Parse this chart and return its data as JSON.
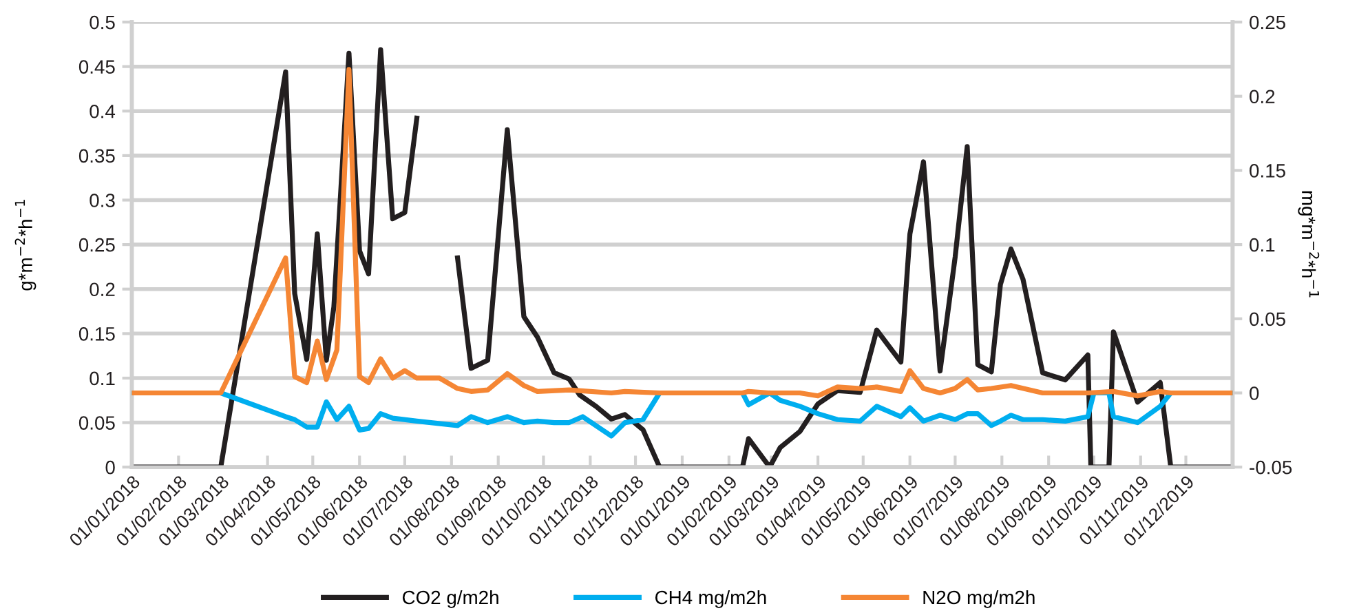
{
  "chart_data": {
    "type": "line",
    "ylabel": "g*m$^{−2}$*h$^{−1}$",
    "y2label": "mg*m$^{−2}$*h$^{−1}$",
    "xlim": [
      "2018-01-01",
      "2020-01-01"
    ],
    "xticks": [
      {
        "value": "2018-01-01",
        "label": "01/01/2018"
      },
      {
        "value": "2018-02-01",
        "label": "01/02/2018"
      },
      {
        "value": "2018-03-01",
        "label": "01/03/2018"
      },
      {
        "value": "2018-04-01",
        "label": "01/04/2018"
      },
      {
        "value": "2018-05-01",
        "label": "01/05/2018"
      },
      {
        "value": "2018-06-01",
        "label": "01/06/2018"
      },
      {
        "value": "2018-07-01",
        "label": "01/07/2018"
      },
      {
        "value": "2018-08-01",
        "label": "01/08/2018"
      },
      {
        "value": "2018-09-01",
        "label": "01/09/2018"
      },
      {
        "value": "2018-10-01",
        "label": "01/10/2018"
      },
      {
        "value": "2018-11-01",
        "label": "01/11/2018"
      },
      {
        "value": "2018-12-01",
        "label": "01/12/2018"
      },
      {
        "value": "2019-01-01",
        "label": "01/01/2019"
      },
      {
        "value": "2019-02-01",
        "label": "01/02/2019"
      },
      {
        "value": "2019-03-01",
        "label": "01/03/2019"
      },
      {
        "value": "2019-04-01",
        "label": "01/04/2019"
      },
      {
        "value": "2019-05-01",
        "label": "01/05/2019"
      },
      {
        "value": "2019-06-01",
        "label": "01/06/2019"
      },
      {
        "value": "2019-07-01",
        "label": "01/07/2019"
      },
      {
        "value": "2019-08-01",
        "label": "01/08/2019"
      },
      {
        "value": "2019-09-01",
        "label": "01/09/2019"
      },
      {
        "value": "2019-10-01",
        "label": "01/10/2019"
      },
      {
        "value": "2019-11-01",
        "label": "01/11/2019"
      },
      {
        "value": "2019-12-01",
        "label": "01/12/2019"
      }
    ],
    "ylim": [
      0,
      0.5
    ],
    "yticks": [
      0,
      0.05,
      0.1,
      0.15,
      0.2,
      0.25,
      0.3,
      0.35,
      0.4,
      0.45,
      0.5
    ],
    "y2lim": [
      -0.05,
      0.25
    ],
    "y2ticks": [
      {
        "value": -0.05,
        "label": "-0.05"
      },
      0,
      0.05,
      0.1,
      0.15,
      0.2,
      0.25
    ],
    "grid": "y",
    "legend": "bottom",
    "marker": "none",
    "line_style": "solid",
    "series": [
      {
        "name": "CO2 g/m2h",
        "color": "#231f20",
        "x": [
          "2018-01-01",
          "2018-03-01",
          "2018-04-13",
          "2018-04-19",
          "2018-04-27",
          "2018-05-04",
          "2018-05-10",
          "2018-05-15",
          "2018-05-25",
          "2018-06-01",
          "2018-06-07",
          "2018-06-15",
          "2018-06-23",
          "2018-07-01",
          "2018-07-09",
          "2018-07-20",
          "2018-08-05",
          "2018-08-14",
          "2018-08-25",
          "2018-09-07",
          "2018-09-18",
          "2018-09-27",
          "2018-10-08",
          "2018-10-18",
          "2018-10-25",
          "2018-11-05",
          "2018-11-15",
          "2018-11-24",
          "2018-12-06",
          "2018-12-17",
          "2019-02-10",
          "2019-02-14",
          "2019-02-28",
          "2019-03-07",
          "2019-03-20",
          "2019-04-01",
          "2019-04-14",
          "2019-04-29",
          "2019-05-10",
          "2019-05-26",
          "2019-06-01",
          "2019-06-10",
          "2019-06-21",
          "2019-07-01",
          "2019-07-09",
          "2019-07-16",
          "2019-07-25",
          "2019-07-31",
          "2019-08-07",
          "2019-08-15",
          "2019-08-28",
          "2019-09-12",
          "2019-09-27",
          "2019-09-29",
          "2019-10-11",
          "2019-10-14",
          "2019-10-30",
          "2019-11-14",
          "2019-11-21",
          "2019-12-31"
        ],
        "values": [
          0,
          0,
          0.444,
          0.195,
          0.121,
          0.262,
          0.12,
          0.18,
          0.465,
          0.243,
          0.217,
          0.469,
          0.279,
          0.286,
          0.392,
          null,
          0.235,
          0.111,
          0.12,
          0.379,
          0.169,
          0.146,
          0.106,
          0.099,
          0.081,
          0.068,
          0.054,
          0.059,
          0.042,
          0,
          0,
          0.032,
          0,
          0.022,
          0.04,
          0.071,
          0.086,
          0.084,
          0.154,
          0.118,
          0.262,
          0.343,
          0.108,
          0.236,
          0.36,
          0.115,
          0.107,
          0.205,
          0.245,
          0.211,
          0.106,
          0.098,
          0.126,
          0,
          0,
          0.152,
          0.073,
          0.095,
          0,
          0
        ]
      },
      {
        "name": "CH4 mg/m2h",
        "color": "#00aeef",
        "axis": "y2",
        "x": [
          "2018-01-01",
          "2018-03-01",
          "2018-04-13",
          "2018-04-19",
          "2018-04-27",
          "2018-05-04",
          "2018-05-10",
          "2018-05-17",
          "2018-05-25",
          "2018-06-01",
          "2018-06-07",
          "2018-06-15",
          "2018-06-23",
          "2018-07-09",
          "2018-08-05",
          "2018-08-14",
          "2018-08-25",
          "2018-09-07",
          "2018-09-18",
          "2018-09-27",
          "2018-10-08",
          "2018-10-18",
          "2018-10-27",
          "2018-11-15",
          "2018-11-24",
          "2018-12-06",
          "2018-12-17",
          "2019-02-10",
          "2019-02-14",
          "2019-02-28",
          "2019-03-07",
          "2019-03-20",
          "2019-04-01",
          "2019-04-14",
          "2019-04-29",
          "2019-05-10",
          "2019-05-26",
          "2019-06-01",
          "2019-06-10",
          "2019-06-21",
          "2019-07-01",
          "2019-07-09",
          "2019-07-16",
          "2019-07-25",
          "2019-07-31",
          "2019-08-07",
          "2019-08-15",
          "2019-08-28",
          "2019-09-12",
          "2019-09-27",
          "2019-10-01",
          "2019-10-11",
          "2019-10-14",
          "2019-10-30",
          "2019-11-14",
          "2019-11-21",
          "2019-12-31"
        ],
        "values": [
          0,
          0,
          -0.016,
          -0.018,
          -0.023,
          -0.023,
          -0.006,
          -0.018,
          -0.009,
          -0.025,
          -0.024,
          -0.014,
          -0.017,
          -0.019,
          -0.022,
          -0.016,
          -0.02,
          -0.016,
          -0.02,
          -0.019,
          -0.02,
          -0.02,
          -0.016,
          -0.029,
          -0.02,
          -0.018,
          0,
          0,
          -0.008,
          0,
          -0.005,
          -0.009,
          -0.014,
          -0.018,
          -0.019,
          -0.009,
          -0.016,
          -0.01,
          -0.019,
          -0.015,
          -0.018,
          -0.014,
          -0.014,
          -0.022,
          -0.019,
          -0.015,
          -0.018,
          -0.018,
          -0.019,
          -0.016,
          0,
          0,
          -0.016,
          -0.02,
          -0.009,
          0,
          0
        ]
      },
      {
        "name": "N2O mg/m2h",
        "color": "#f58634",
        "axis": "y2",
        "x": [
          "2018-01-01",
          "2018-03-01",
          "2018-04-13",
          "2018-04-19",
          "2018-04-27",
          "2018-05-04",
          "2018-05-10",
          "2018-05-17",
          "2018-05-25",
          "2018-06-01",
          "2018-06-07",
          "2018-06-15",
          "2018-06-23",
          "2018-07-01",
          "2018-07-09",
          "2018-07-24",
          "2018-08-05",
          "2018-08-14",
          "2018-08-25",
          "2018-09-07",
          "2018-09-18",
          "2018-09-27",
          "2018-10-18",
          "2018-11-15",
          "2018-11-24",
          "2018-12-17",
          "2019-02-10",
          "2019-02-14",
          "2019-02-28",
          "2019-03-20",
          "2019-04-01",
          "2019-04-14",
          "2019-04-29",
          "2019-05-10",
          "2019-05-26",
          "2019-06-01",
          "2019-06-10",
          "2019-06-21",
          "2019-07-01",
          "2019-07-09",
          "2019-07-16",
          "2019-07-25",
          "2019-08-07",
          "2019-08-28",
          "2019-09-27",
          "2019-10-14",
          "2019-10-30",
          "2019-11-14",
          "2019-11-21",
          "2019-12-31"
        ],
        "values": [
          0,
          0,
          0.091,
          0.011,
          0.007,
          0.035,
          0.009,
          0.029,
          0.218,
          0.011,
          0.007,
          0.023,
          0.01,
          0.015,
          0.01,
          0.01,
          0.003,
          0.001,
          0.002,
          0.013,
          0.005,
          0.001,
          0.002,
          0,
          0.001,
          0,
          0,
          0.001,
          0,
          0,
          -0.002,
          0.004,
          0.003,
          0.004,
          0.001,
          0.015,
          0.003,
          0,
          0.003,
          0.009,
          0.002,
          0.003,
          0.005,
          0,
          0,
          0.001,
          -0.002,
          0.001,
          0,
          0
        ]
      }
    ]
  }
}
